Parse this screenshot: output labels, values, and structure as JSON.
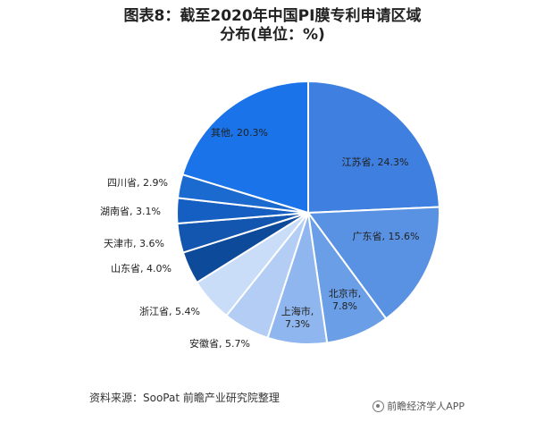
{
  "chart_data": {
    "type": "pie",
    "title": "图表8：截至2020年中国PI膜专利申请区域分布(单位：%)",
    "labels": [
      "江苏省",
      "广东省",
      "北京市",
      "上海市",
      "安徽省",
      "浙江省",
      "山东省",
      "天津市",
      "湖南省",
      "四川省",
      "其他"
    ],
    "values": [
      24.3,
      15.6,
      7.8,
      7.3,
      5.7,
      5.4,
      4.0,
      3.6,
      3.1,
      2.9,
      20.3
    ],
    "colors": [
      "#3f7fe0",
      "#5a92e3",
      "#6a9ee6",
      "#8fb6ee",
      "#b3cdf4",
      "#c9dcf8",
      "#0d4a9a",
      "#1356b0",
      "#155fc2",
      "#1a6ad0",
      "#1a73e8"
    ],
    "data_labels": [
      "江苏省, 24.3%",
      "广东省, 15.6%",
      "北京市,\n7.8%",
      "上海市,\n7.3%",
      "安徽省, 5.7%",
      "浙江省, 5.4%",
      "山东省, 4.0%",
      "天津市, 3.6%",
      "湖南省, 3.1%",
      "四川省, 2.9%",
      "其他, 20.3%"
    ],
    "unit": "%"
  },
  "footer": {
    "source": "资料来源：SooPat 前瞻产业研究院整理",
    "watermark": "前瞻经济学人APP"
  }
}
